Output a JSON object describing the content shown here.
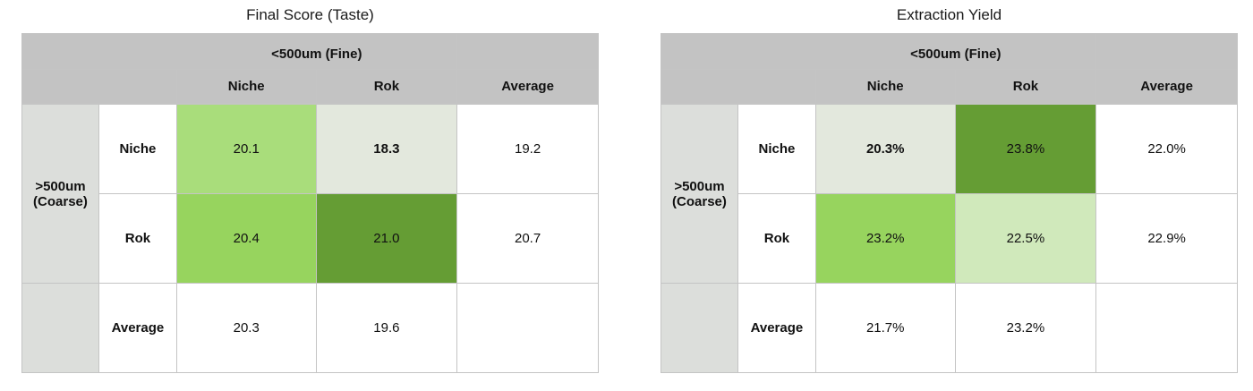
{
  "chart_data": [
    {
      "type": "table",
      "title": "Final Score (Taste)",
      "column_group": "<500um (Fine)",
      "row_group": ">500um (Coarse)",
      "columns": [
        "Niche",
        "Rok",
        "Average"
      ],
      "rows": [
        {
          "label": "Niche",
          "values": [
            "20.1",
            "18.3",
            "19.2"
          ]
        },
        {
          "label": "Rok",
          "values": [
            "20.4",
            "21.0",
            "20.7"
          ]
        },
        {
          "label": "Average",
          "values": [
            "20.3",
            "19.6",
            ""
          ]
        }
      ],
      "highlight_colors": {
        "dark": "#659d34",
        "mid": "#97d45e",
        "light": "#a9dd7b",
        "faint": "#e3e8dd"
      }
    },
    {
      "type": "table",
      "title": "Extraction Yield",
      "column_group": "<500um (Fine)",
      "row_group": ">500um (Coarse)",
      "columns": [
        "Niche",
        "Rok",
        "Average"
      ],
      "rows": [
        {
          "label": "Niche",
          "values": [
            "20.3%",
            "23.8%",
            "22.0%"
          ]
        },
        {
          "label": "Rok",
          "values": [
            "23.2%",
            "22.5%",
            "22.9%"
          ]
        },
        {
          "label": "Average",
          "values": [
            "21.7%",
            "23.2%",
            ""
          ]
        }
      ],
      "highlight_colors": {
        "dark": "#659d34",
        "mid": "#97d45e",
        "pale": "#d0e9bb",
        "faint": "#e3e8dd"
      }
    }
  ]
}
